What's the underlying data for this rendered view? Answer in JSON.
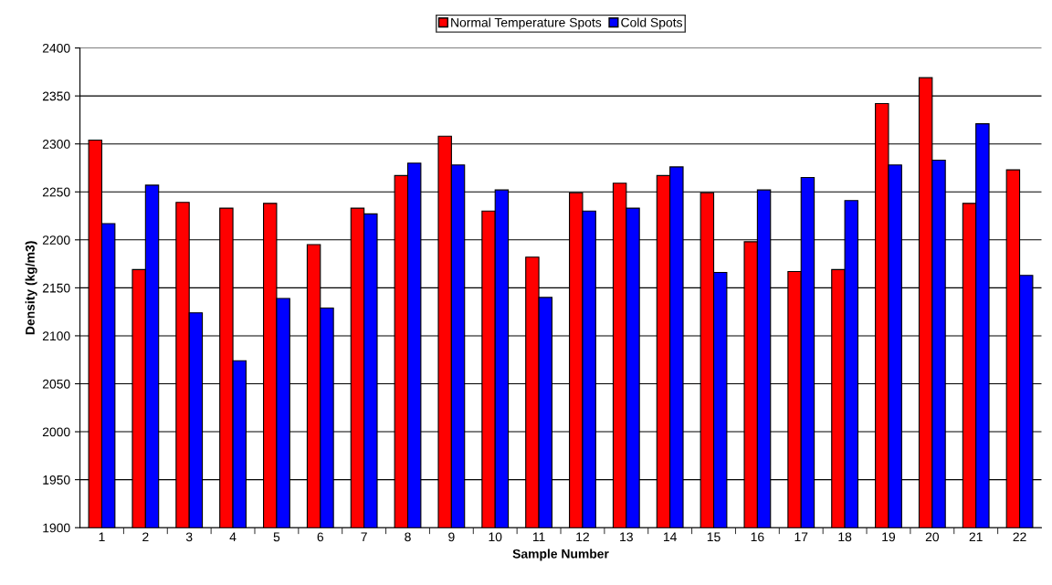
{
  "chart_data": {
    "type": "bar",
    "xlabel": "Sample Number",
    "ylabel": "Density (kg/m3)",
    "categories": [
      "1",
      "2",
      "3",
      "4",
      "5",
      "6",
      "7",
      "8",
      "9",
      "10",
      "11",
      "12",
      "13",
      "14",
      "15",
      "16",
      "17",
      "18",
      "19",
      "20",
      "21",
      "22"
    ],
    "series": [
      {
        "name": "Normal Temperature Spots",
        "color": "#ff0000",
        "values": [
          2304,
          2169,
          2239,
          2233,
          2238,
          2195,
          2233,
          2267,
          2308,
          2230,
          2182,
          2249,
          2259,
          2267,
          2249,
          2198,
          2167,
          2169,
          2342,
          2369,
          2238,
          2273
        ]
      },
      {
        "name": "Cold Spots",
        "color": "#0000ff",
        "values": [
          2217,
          2257,
          2124,
          2074,
          2139,
          2129,
          2227,
          2280,
          2278,
          2252,
          2140,
          2230,
          2233,
          2276,
          2166,
          2252,
          2265,
          2241,
          2278,
          2283,
          2321,
          2163
        ]
      }
    ],
    "ylim": [
      1900,
      2400
    ],
    "yticks": [
      1900,
      1950,
      2000,
      2050,
      2100,
      2150,
      2200,
      2250,
      2300,
      2350,
      2400
    ],
    "grid": "y",
    "legend": "top"
  }
}
